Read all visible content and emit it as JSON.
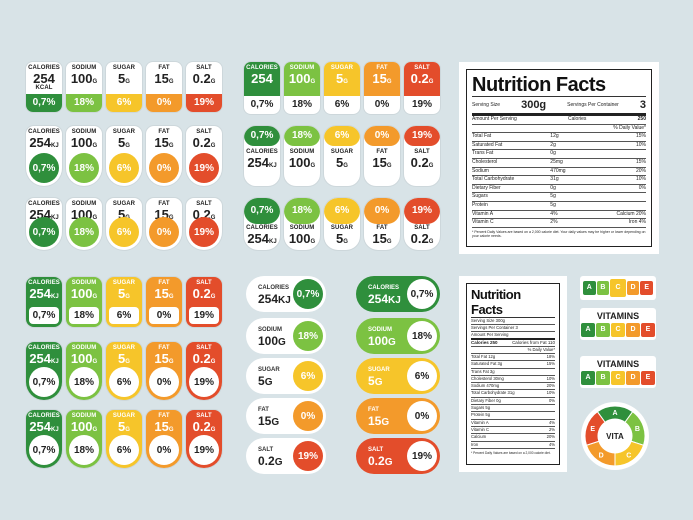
{
  "gda": {
    "names": [
      "CALORIES",
      "SODIUM",
      "SUGAR",
      "FAT",
      "SALT"
    ],
    "values": [
      "254",
      "100",
      "5",
      "15",
      "0.2"
    ],
    "units": [
      "KCAL",
      "G",
      "G",
      "G",
      "G"
    ],
    "kj": "KJ",
    "pcts": [
      "0,7%",
      "18%",
      "6%",
      "0%",
      "19%"
    ],
    "colors": {
      "green": "#2f8f3c",
      "lgreen": "#7cc242",
      "yellow": "#f6c52a",
      "orange": "#f39a2b",
      "red": "#e34d2b"
    }
  },
  "nf1": {
    "title": "Nutrition Facts",
    "serving_label": "Serving Size",
    "serving_value": "300g",
    "servings_label": "Servings Per Container",
    "servings_value": "3",
    "amount_label": "Amount Per Serving",
    "calories_label": "Calories",
    "calories_value": "250",
    "dv_label": "% Daily Value*",
    "rows": [
      [
        "Total Fat",
        "12g",
        "15%"
      ],
      [
        "Saturated Fat",
        "2g",
        "10%"
      ],
      [
        "Trans Fat",
        "0g",
        ""
      ],
      [
        "Cholesterol",
        "25mg",
        "15%"
      ],
      [
        "Sodium",
        "470mg",
        "20%"
      ],
      [
        "Total Carbohydrate",
        "31g",
        "10%"
      ],
      [
        "Dietary Fiber",
        "0g",
        "0%"
      ],
      [
        "Sugars",
        "5g",
        ""
      ],
      [
        "Protein",
        "5g",
        ""
      ],
      [
        "Vitamin A",
        "4%",
        "Calcium 20%"
      ],
      [
        "Vitamin C",
        "2%",
        "Iron 4%"
      ]
    ],
    "footnote": "* Percent Daily Values are based on a 2,000 calorie diet. Your daily values may be higher or lower depending on your calorie needs."
  },
  "nf2": {
    "title": "Nutrition Facts",
    "serving": "Serving Size 300g",
    "servings": "Servings Per Container 3",
    "amount": "Amount Per Serving",
    "calories": "Calories 250",
    "calories_fat": "Calories from Fat 110",
    "dv": "% Daily Value*",
    "rows": [
      [
        "Total Fat 12g",
        "18%"
      ],
      [
        "Saturated Fat 3g",
        "15%"
      ],
      [
        "Trans Fat 3g",
        ""
      ],
      [
        "Cholesterol 30mg",
        "10%"
      ],
      [
        "Sodium 470mg",
        "20%"
      ],
      [
        "Total Carbohydrate 31g",
        "10%"
      ],
      [
        "Dietary Fiber 0g",
        "0%"
      ],
      [
        "Sugars 5g",
        ""
      ],
      [
        "Protein 5g",
        ""
      ],
      [
        "Vitamin A",
        "4%"
      ],
      [
        "Vitamin C",
        "2%"
      ],
      [
        "Calcium",
        "20%"
      ],
      [
        "Iron",
        "4%"
      ]
    ],
    "footnote": "* Percent Daily Values are based on a 2,000 calorie diet."
  },
  "grade_letters": [
    "A",
    "B",
    "C",
    "D",
    "E"
  ],
  "vitamins_title": "VITAMINS",
  "vita_label": "VITA"
}
